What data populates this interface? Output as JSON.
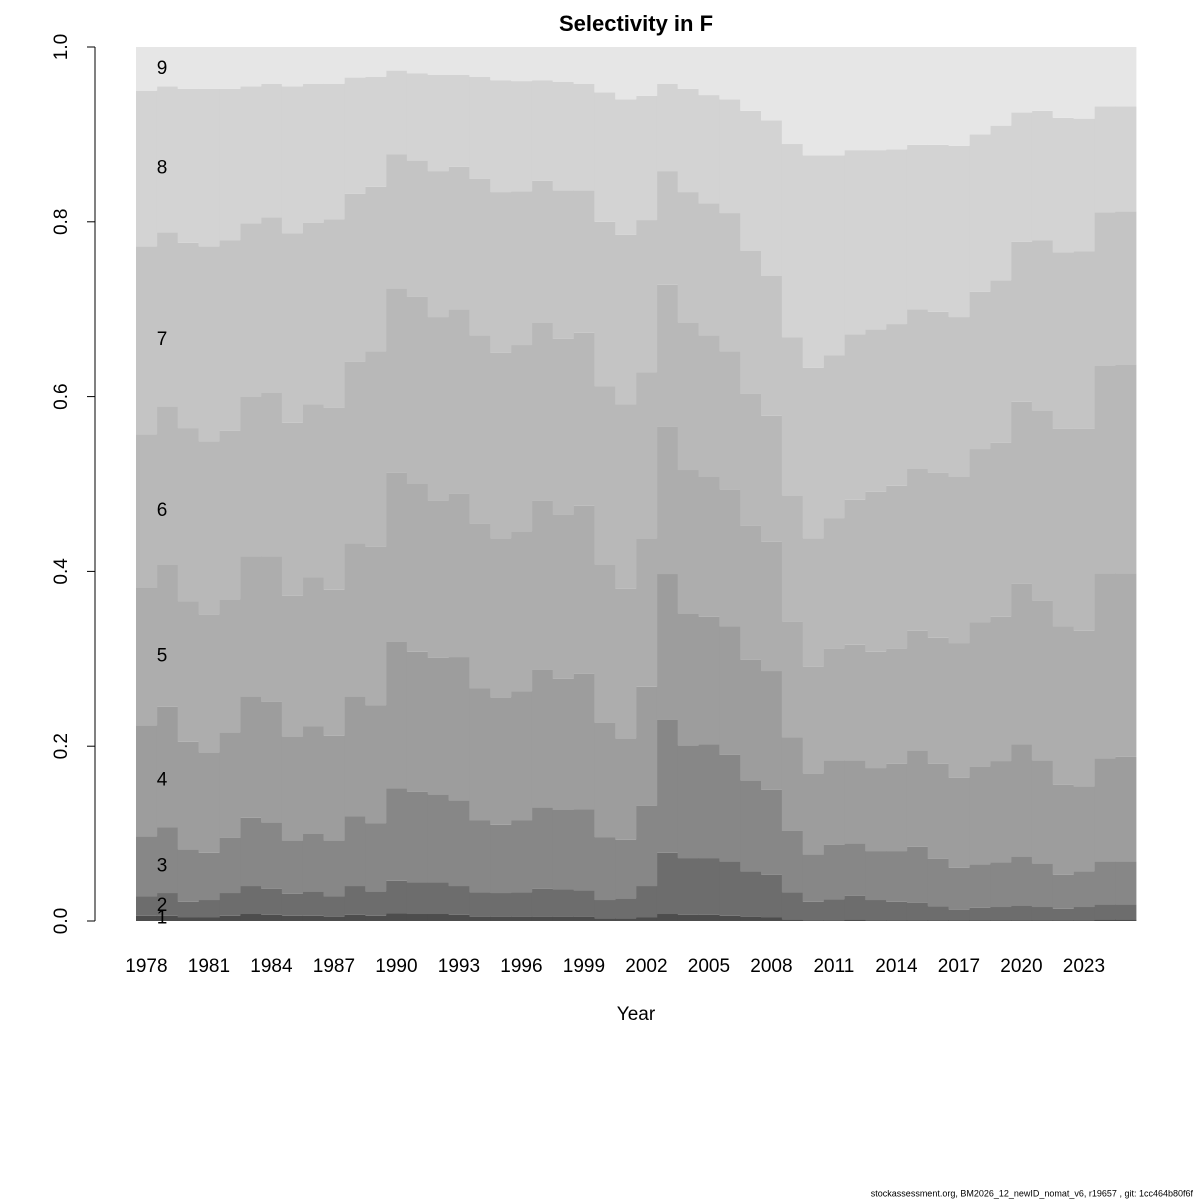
{
  "chart_data": {
    "type": "bar",
    "stacked": true,
    "title": "Selectivity in F",
    "x_label": "Year",
    "footer": "stockassessment.org, BM2026_12_newID_nomat_v6, r19657 , git: 1cc464b80f6f",
    "x": [
      1978,
      1979,
      1980,
      1981,
      1982,
      1983,
      1984,
      1985,
      1986,
      1987,
      1988,
      1989,
      1990,
      1991,
      1992,
      1993,
      1994,
      1995,
      1996,
      1997,
      1998,
      1999,
      2000,
      2001,
      2002,
      2003,
      2004,
      2005,
      2006,
      2007,
      2008,
      2009,
      2010,
      2011,
      2012,
      2013,
      2014,
      2015,
      2016,
      2017,
      2018,
      2019,
      2020,
      2021,
      2022,
      2023,
      2024,
      2025
    ],
    "xlim": [
      1977.5,
      2025.5
    ],
    "xticks": [
      1978,
      1981,
      1984,
      1987,
      1990,
      1993,
      1996,
      1999,
      2002,
      2005,
      2008,
      2011,
      2014,
      2017,
      2020,
      2023
    ],
    "ylim": [
      0,
      1
    ],
    "yticks": [
      {
        "value": 0,
        "label": "0.0"
      },
      0.2,
      0.4,
      0.6,
      0.8,
      {
        "value": 1,
        "label": "1.0"
      }
    ],
    "series": [
      {
        "name": "1",
        "color": "#4d4d4d",
        "values": [
          0.006,
          0.006,
          0.004,
          0.004,
          0.006,
          0.008,
          0.007,
          0.006,
          0.006,
          0.005,
          0.007,
          0.006,
          0.009,
          0.008,
          0.008,
          0.007,
          0.005,
          0.005,
          0.005,
          0.005,
          0.005,
          0.005,
          0.003,
          0.003,
          0.004,
          0.008,
          0.007,
          0.007,
          0.006,
          0.005,
          0.004,
          0.002,
          0.001,
          0.001,
          0.002,
          0.001,
          0.001,
          0.001,
          0.001,
          0.001,
          0.001,
          0.001,
          0.001,
          0.001,
          0.001,
          0.001,
          0.002,
          0.002
        ]
      },
      {
        "name": "2",
        "color": "#6d6d6d",
        "values": [
          0.022,
          0.026,
          0.018,
          0.02,
          0.026,
          0.032,
          0.03,
          0.025,
          0.028,
          0.023,
          0.033,
          0.028,
          0.037,
          0.036,
          0.036,
          0.033,
          0.028,
          0.027,
          0.028,
          0.032,
          0.031,
          0.03,
          0.021,
          0.023,
          0.036,
          0.07,
          0.065,
          0.065,
          0.062,
          0.052,
          0.049,
          0.031,
          0.021,
          0.024,
          0.027,
          0.023,
          0.021,
          0.02,
          0.016,
          0.012,
          0.014,
          0.015,
          0.017,
          0.015,
          0.013,
          0.015,
          0.017,
          0.017
        ]
      },
      {
        "name": "3",
        "color": "#878787",
        "values": [
          0.069,
          0.075,
          0.06,
          0.054,
          0.063,
          0.078,
          0.076,
          0.061,
          0.066,
          0.064,
          0.08,
          0.078,
          0.106,
          0.104,
          0.101,
          0.098,
          0.082,
          0.078,
          0.082,
          0.093,
          0.091,
          0.093,
          0.072,
          0.067,
          0.092,
          0.152,
          0.129,
          0.13,
          0.122,
          0.104,
          0.097,
          0.07,
          0.054,
          0.062,
          0.06,
          0.056,
          0.058,
          0.064,
          0.054,
          0.048,
          0.05,
          0.051,
          0.056,
          0.05,
          0.039,
          0.041,
          0.049,
          0.049
        ]
      },
      {
        "name": "4",
        "color": "#9d9d9d",
        "values": [
          0.127,
          0.138,
          0.123,
          0.115,
          0.121,
          0.139,
          0.138,
          0.119,
          0.123,
          0.12,
          0.137,
          0.135,
          0.168,
          0.16,
          0.156,
          0.164,
          0.151,
          0.146,
          0.148,
          0.158,
          0.15,
          0.155,
          0.131,
          0.116,
          0.136,
          0.167,
          0.151,
          0.146,
          0.147,
          0.138,
          0.136,
          0.107,
          0.093,
          0.097,
          0.095,
          0.095,
          0.1,
          0.11,
          0.109,
          0.103,
          0.112,
          0.116,
          0.128,
          0.118,
          0.103,
          0.097,
          0.118,
          0.12
        ]
      },
      {
        "name": "5",
        "color": "#adadad",
        "values": [
          0.157,
          0.163,
          0.161,
          0.158,
          0.152,
          0.16,
          0.166,
          0.161,
          0.17,
          0.167,
          0.175,
          0.181,
          0.193,
          0.192,
          0.18,
          0.187,
          0.189,
          0.182,
          0.183,
          0.193,
          0.188,
          0.192,
          0.181,
          0.171,
          0.17,
          0.169,
          0.164,
          0.16,
          0.157,
          0.153,
          0.148,
          0.133,
          0.122,
          0.128,
          0.132,
          0.133,
          0.132,
          0.137,
          0.144,
          0.154,
          0.165,
          0.165,
          0.184,
          0.183,
          0.181,
          0.178,
          0.212,
          0.21
        ]
      },
      {
        "name": "6",
        "color": "#b8b8b8",
        "values": [
          0.176,
          0.181,
          0.198,
          0.198,
          0.193,
          0.183,
          0.188,
          0.198,
          0.198,
          0.208,
          0.208,
          0.224,
          0.211,
          0.214,
          0.21,
          0.211,
          0.215,
          0.212,
          0.213,
          0.204,
          0.201,
          0.198,
          0.204,
          0.211,
          0.19,
          0.162,
          0.169,
          0.162,
          0.158,
          0.151,
          0.144,
          0.144,
          0.147,
          0.149,
          0.166,
          0.183,
          0.186,
          0.186,
          0.189,
          0.19,
          0.198,
          0.199,
          0.208,
          0.217,
          0.226,
          0.231,
          0.237,
          0.239
        ]
      },
      {
        "name": "7",
        "color": "#c4c4c4",
        "values": [
          0.215,
          0.199,
          0.212,
          0.223,
          0.218,
          0.198,
          0.2,
          0.217,
          0.208,
          0.216,
          0.192,
          0.188,
          0.153,
          0.156,
          0.167,
          0.163,
          0.179,
          0.184,
          0.176,
          0.162,
          0.17,
          0.163,
          0.188,
          0.194,
          0.174,
          0.13,
          0.149,
          0.151,
          0.158,
          0.164,
          0.16,
          0.181,
          0.195,
          0.186,
          0.189,
          0.186,
          0.185,
          0.182,
          0.184,
          0.183,
          0.18,
          0.186,
          0.183,
          0.195,
          0.202,
          0.203,
          0.176,
          0.175
        ]
      },
      {
        "name": "8",
        "color": "#d3d3d3",
        "values": [
          0.178,
          0.167,
          0.176,
          0.18,
          0.173,
          0.157,
          0.153,
          0.168,
          0.159,
          0.155,
          0.133,
          0.126,
          0.096,
          0.1,
          0.11,
          0.105,
          0.117,
          0.128,
          0.126,
          0.115,
          0.124,
          0.122,
          0.148,
          0.155,
          0.142,
          0.1,
          0.118,
          0.124,
          0.13,
          0.16,
          0.178,
          0.221,
          0.243,
          0.229,
          0.211,
          0.205,
          0.2,
          0.188,
          0.191,
          0.196,
          0.18,
          0.177,
          0.148,
          0.148,
          0.154,
          0.152,
          0.121,
          0.12
        ]
      },
      {
        "name": "9",
        "color": "#e6e6e6",
        "values": [
          0.05,
          0.045,
          0.048,
          0.048,
          0.048,
          0.045,
          0.042,
          0.045,
          0.042,
          0.042,
          0.035,
          0.034,
          0.027,
          0.03,
          0.032,
          0.032,
          0.034,
          0.038,
          0.039,
          0.038,
          0.04,
          0.042,
          0.052,
          0.06,
          0.056,
          0.042,
          0.048,
          0.055,
          0.06,
          0.073,
          0.084,
          0.111,
          0.124,
          0.124,
          0.118,
          0.118,
          0.117,
          0.112,
          0.112,
          0.113,
          0.1,
          0.09,
          0.075,
          0.073,
          0.081,
          0.082,
          0.068,
          0.068
        ]
      }
    ]
  }
}
